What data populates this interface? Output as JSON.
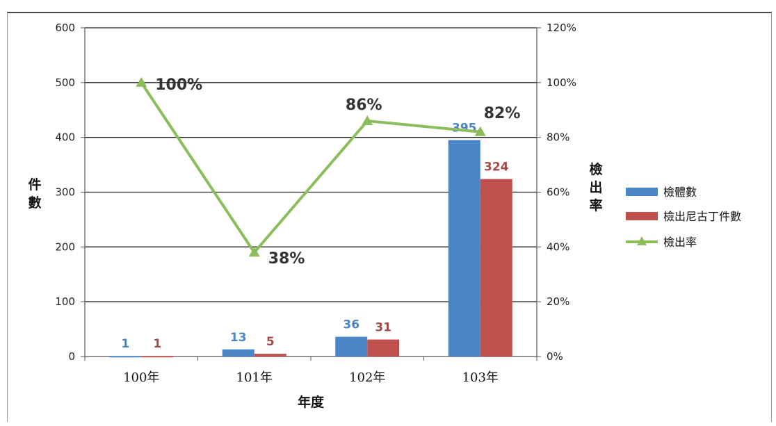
{
  "chart_data": {
    "type": "bar",
    "categories": [
      "100年",
      "101年",
      "102年",
      "103年"
    ],
    "series": [
      {
        "name": "檢體數",
        "type": "bar",
        "axis": "left",
        "color": "#4a86c5",
        "values": [
          1,
          13,
          36,
          395
        ],
        "labels": [
          "1",
          "13",
          "36",
          "395"
        ]
      },
      {
        "name": "檢出尼古丁件數",
        "type": "bar",
        "axis": "left",
        "color": "#c0504d",
        "values": [
          1,
          5,
          31,
          324
        ],
        "labels": [
          "1",
          "5",
          "31",
          "324"
        ]
      },
      {
        "name": "檢出率",
        "type": "line",
        "axis": "right",
        "color": "#8bbd5a",
        "values": [
          100,
          38,
          86,
          82
        ],
        "labels": [
          "100%",
          "38%",
          "86%",
          "82%"
        ]
      }
    ],
    "xlabel": "年度",
    "ylabel": "件數",
    "y2label": "檢出率",
    "ylim": [
      0,
      600
    ],
    "y2lim": [
      0,
      120
    ],
    "yticks": [
      "0",
      "100",
      "200",
      "300",
      "400",
      "500",
      "600"
    ],
    "y2ticks": [
      "0%",
      "20%",
      "40%",
      "60%",
      "80%",
      "100%",
      "120%"
    ],
    "grid": true,
    "legend": "right"
  }
}
